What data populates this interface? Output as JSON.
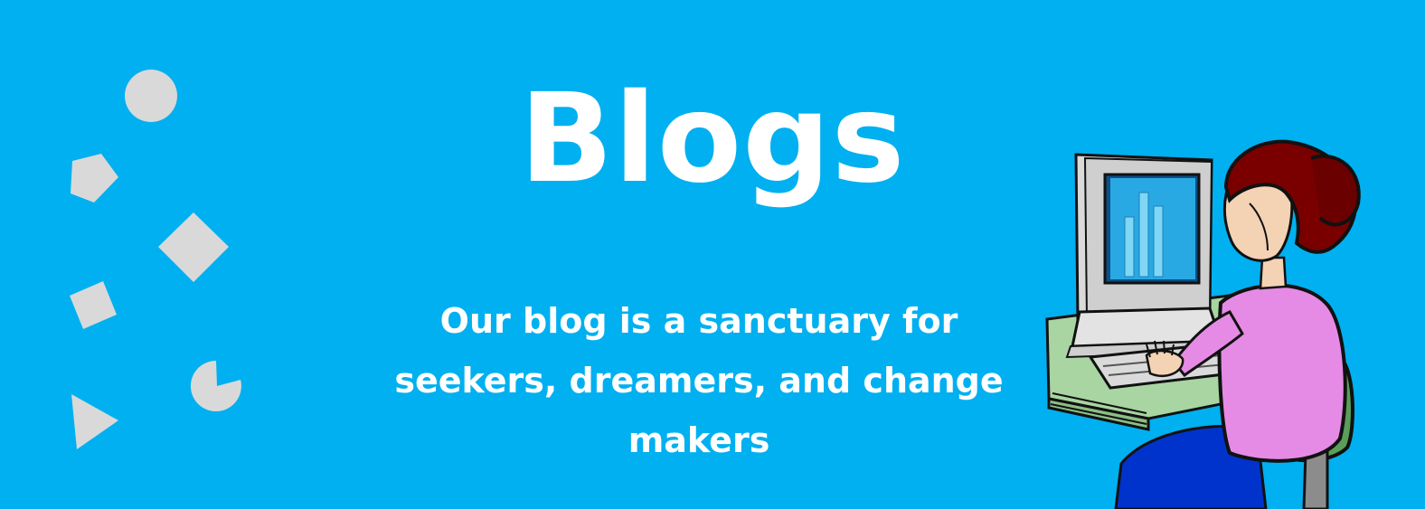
{
  "banner": {
    "background_color": "#00B0F0",
    "shape_color": "#D9D9D9",
    "title": "Blogs",
    "tagline": "Our blog is a sanctuary for seekers, dreamers, and change makers",
    "decorative_shapes": [
      "circle-icon",
      "pentagon-icon",
      "diamond-icon",
      "small-diamond-icon",
      "pie-icon",
      "triangle-icon"
    ],
    "illustration": "woman-at-computer-illustration"
  }
}
